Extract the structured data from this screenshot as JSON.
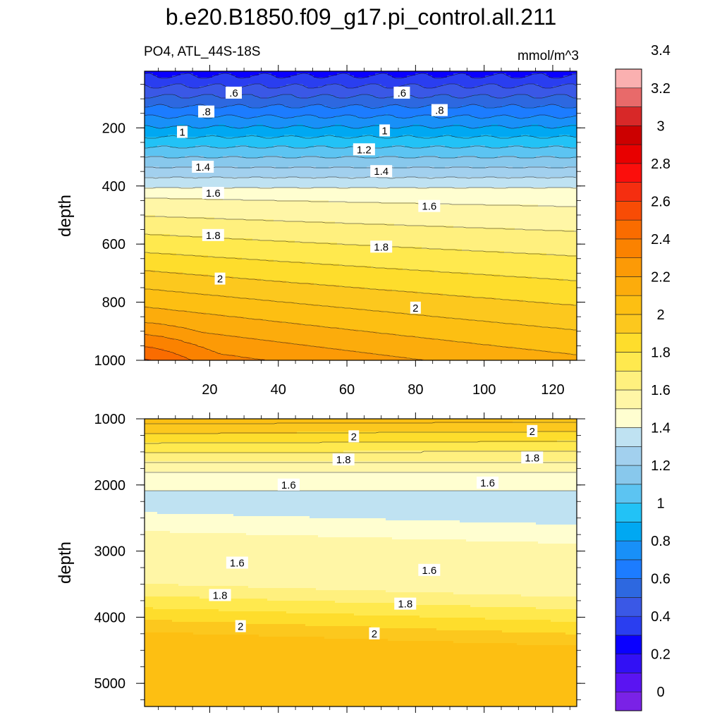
{
  "title": "b.e20.B1850.f09_g17.pi_control.all.211",
  "subtitle_left": "PO4, ATL_44S-18S",
  "units": "mmol/m^3",
  "chart_data": [
    {
      "type": "contour",
      "panel": "upper",
      "ylabel": "depth",
      "xlim": [
        1,
        127
      ],
      "ylim": [
        1000,
        5
      ],
      "x_ticks": [
        20,
        40,
        60,
        80,
        100,
        120
      ],
      "x_tick_labels": [
        "20",
        "40",
        "60",
        "80",
        "100",
        "120"
      ],
      "y_ticks": [
        200,
        400,
        600,
        800,
        1000
      ],
      "y_tick_labels": [
        "200",
        "400",
        "600",
        "800",
        "1000"
      ],
      "contour_labels": [
        {
          "text": ".6",
          "x": 27,
          "y": 80
        },
        {
          "text": ".6",
          "x": 76,
          "y": 80
        },
        {
          "text": ".8",
          "x": 19,
          "y": 145
        },
        {
          "text": ".8",
          "x": 87,
          "y": 140
        },
        {
          "text": "1",
          "x": 12,
          "y": 215
        },
        {
          "text": "1",
          "x": 71,
          "y": 210
        },
        {
          "text": "1.2",
          "x": 65,
          "y": 275
        },
        {
          "text": "1.4",
          "x": 18,
          "y": 335
        },
        {
          "text": "1.4",
          "x": 70,
          "y": 350
        },
        {
          "text": "1.6",
          "x": 21,
          "y": 425
        },
        {
          "text": "1.6",
          "x": 84,
          "y": 470
        },
        {
          "text": "1.8",
          "x": 21,
          "y": 570
        },
        {
          "text": "1.8",
          "x": 70,
          "y": 610
        },
        {
          "text": "2",
          "x": 23,
          "y": 720
        },
        {
          "text": "2",
          "x": 80,
          "y": 820
        }
      ]
    },
    {
      "type": "contour",
      "panel": "lower",
      "ylabel": "depth",
      "xlim": [
        1,
        127
      ],
      "ylim": [
        5350,
        1000
      ],
      "y_ticks": [
        1000,
        2000,
        3000,
        4000,
        5000
      ],
      "y_tick_labels": [
        "1000",
        "2000",
        "3000",
        "4000",
        "5000"
      ],
      "contour_labels": [
        {
          "text": "2",
          "x": 62,
          "y": 1270
        },
        {
          "text": "2",
          "x": 114,
          "y": 1190
        },
        {
          "text": "1.8",
          "x": 59,
          "y": 1620
        },
        {
          "text": "1.8",
          "x": 114,
          "y": 1590
        },
        {
          "text": "1.6",
          "x": 43,
          "y": 2000
        },
        {
          "text": "1.6",
          "x": 101,
          "y": 1970
        },
        {
          "text": "1.6",
          "x": 28,
          "y": 3180
        },
        {
          "text": "1.6",
          "x": 84,
          "y": 3290
        },
        {
          "text": "1.8",
          "x": 23,
          "y": 3670
        },
        {
          "text": "1.8",
          "x": 77,
          "y": 3800
        },
        {
          "text": "2",
          "x": 29,
          "y": 4140
        },
        {
          "text": "2",
          "x": 68,
          "y": 4250
        }
      ]
    }
  ],
  "colorbar": {
    "levels": [
      0,
      0.2,
      0.4,
      0.6,
      0.8,
      1,
      1.2,
      1.4,
      1.6,
      1.8,
      2,
      2.2,
      2.4,
      2.6,
      2.8,
      3,
      3.2,
      3.4
    ],
    "tick_labels": [
      "0",
      "0.2",
      "0.4",
      "0.6",
      "0.8",
      "1",
      "1.2",
      "1.4",
      "1.6",
      "1.8",
      "2",
      "2.2",
      "2.4",
      "2.6",
      "2.8",
      "3",
      "3.2",
      "3.4"
    ],
    "colors": [
      "#7a22e6",
      "#5a14f2",
      "#3210f5",
      "#0a00ff",
      "#2a3ef0",
      "#3a58e6",
      "#2d68e0",
      "#1c7cff",
      "#1890f8",
      "#00a8f2",
      "#22c2f6",
      "#5cc4f2",
      "#88c8ec",
      "#a2d0ee",
      "#bfe2f2",
      "#fffed0",
      "#fff6a6",
      "#fff07e",
      "#ffe94e",
      "#fedd2c",
      "#fcc81e",
      "#fdbf12",
      "#fcac0c",
      "#fc9a06",
      "#fb8200",
      "#fa6c00",
      "#f84c05",
      "#f52e10",
      "#fb0e0c",
      "#e80000",
      "#cc0000",
      "#d82828",
      "#e86a6a",
      "#fab0b0"
    ]
  }
}
